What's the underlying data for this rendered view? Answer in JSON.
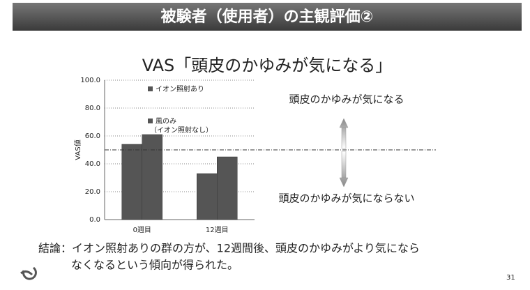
{
  "slide_title": "被験者（使用者）の主観評価②",
  "conclusion": [
    "結論：イオン照射ありの群の方が、12週間後、頭皮のかゆみがより気になら",
    "なくなるという傾向が得られた。"
  ],
  "page_number": "31",
  "chart_data": {
    "type": "bar",
    "title": "VAS「頭皮のかゆみが気になる」",
    "y_label": "VAS値",
    "categories": [
      "0週目",
      "12週目"
    ],
    "series": [
      {
        "name": "イオン照射あり",
        "color": "#555555",
        "values": [
          54,
          33
        ]
      },
      {
        "name": "風のみ\n（イオン照射なし）",
        "color": "#555555",
        "values": [
          61,
          45
        ]
      }
    ],
    "ylim": [
      0,
      100
    ],
    "yticks": [
      {
        "value": 0,
        "label": "0.0"
      },
      {
        "value": 20,
        "label": "20.0"
      },
      {
        "value": 40,
        "label": "40.0"
      },
      {
        "value": 60,
        "label": "60.0"
      },
      {
        "value": 80,
        "label": "80.0"
      },
      {
        "value": 100,
        "label": "100.0"
      }
    ],
    "grid": true,
    "reference_line": 50,
    "annotations": [
      "頭皮のかゆみが気になる",
      "頭皮のかゆみが気にならない"
    ]
  }
}
